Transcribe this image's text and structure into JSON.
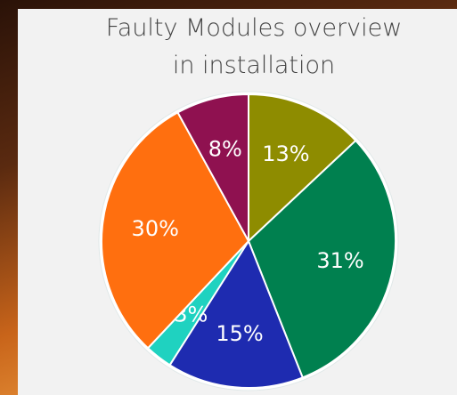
{
  "chart_data": {
    "type": "pie",
    "title": [
      "Faulty Modules overview",
      "in installation"
    ],
    "categories": [
      null,
      null,
      null,
      null,
      null,
      null
    ],
    "values": [
      13,
      31,
      15,
      3,
      30,
      8
    ],
    "value_labels": [
      "13%",
      "31%",
      "15%",
      "3%",
      "30%",
      "8%"
    ],
    "colors": [
      "#8e8c00",
      "#00804f",
      "#1e2bb0",
      "#1fd2c0",
      "#ff6f0f",
      "#8f1150"
    ]
  }
}
